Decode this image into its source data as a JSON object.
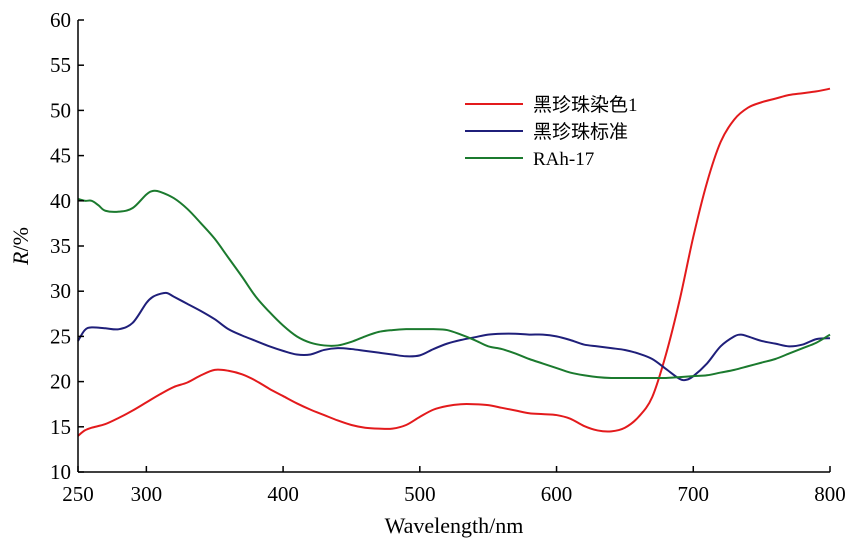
{
  "chart_data": {
    "type": "line",
    "xlabel": "Wavelength/nm",
    "ylabel": {
      "italic": "R",
      "rest": "/%"
    },
    "xlim": [
      250,
      800
    ],
    "ylim": [
      10,
      60
    ],
    "xticks": [
      250,
      300,
      400,
      500,
      600,
      700,
      800
    ],
    "yticks": [
      10,
      15,
      20,
      25,
      30,
      35,
      40,
      45,
      50,
      55,
      60
    ],
    "grid": false,
    "legend_position": "top-right",
    "series": [
      {
        "name": "黑珍珠染色1",
        "color": "#e31a1c",
        "points": [
          [
            250,
            14.0
          ],
          [
            255,
            14.6
          ],
          [
            260,
            14.9
          ],
          [
            270,
            15.3
          ],
          [
            280,
            16.0
          ],
          [
            290,
            16.8
          ],
          [
            300,
            17.7
          ],
          [
            310,
            18.6
          ],
          [
            320,
            19.4
          ],
          [
            330,
            19.9
          ],
          [
            340,
            20.7
          ],
          [
            350,
            21.3
          ],
          [
            360,
            21.2
          ],
          [
            370,
            20.8
          ],
          [
            380,
            20.1
          ],
          [
            390,
            19.2
          ],
          [
            400,
            18.4
          ],
          [
            410,
            17.6
          ],
          [
            420,
            16.9
          ],
          [
            430,
            16.3
          ],
          [
            440,
            15.7
          ],
          [
            450,
            15.2
          ],
          [
            460,
            14.9
          ],
          [
            470,
            14.8
          ],
          [
            480,
            14.8
          ],
          [
            490,
            15.2
          ],
          [
            500,
            16.1
          ],
          [
            510,
            16.9
          ],
          [
            520,
            17.3
          ],
          [
            530,
            17.5
          ],
          [
            540,
            17.5
          ],
          [
            550,
            17.4
          ],
          [
            560,
            17.1
          ],
          [
            570,
            16.8
          ],
          [
            580,
            16.5
          ],
          [
            590,
            16.4
          ],
          [
            600,
            16.3
          ],
          [
            610,
            15.9
          ],
          [
            620,
            15.1
          ],
          [
            630,
            14.6
          ],
          [
            640,
            14.5
          ],
          [
            650,
            14.9
          ],
          [
            660,
            16.1
          ],
          [
            670,
            18.3
          ],
          [
            680,
            23.0
          ],
          [
            690,
            29.0
          ],
          [
            700,
            36.0
          ],
          [
            710,
            42.0
          ],
          [
            720,
            46.5
          ],
          [
            730,
            49.0
          ],
          [
            740,
            50.3
          ],
          [
            750,
            50.9
          ],
          [
            760,
            51.3
          ],
          [
            770,
            51.7
          ],
          [
            780,
            51.9
          ],
          [
            790,
            52.1
          ],
          [
            800,
            52.4
          ]
        ]
      },
      {
        "name": "黑珍珠标准",
        "color": "#1f1f7a",
        "points": [
          [
            250,
            24.5
          ],
          [
            255,
            25.7
          ],
          [
            260,
            26.0
          ],
          [
            270,
            25.9
          ],
          [
            280,
            25.8
          ],
          [
            290,
            26.5
          ],
          [
            300,
            28.7
          ],
          [
            305,
            29.4
          ],
          [
            310,
            29.7
          ],
          [
            315,
            29.8
          ],
          [
            320,
            29.4
          ],
          [
            330,
            28.6
          ],
          [
            340,
            27.8
          ],
          [
            350,
            26.9
          ],
          [
            360,
            25.8
          ],
          [
            370,
            25.1
          ],
          [
            380,
            24.5
          ],
          [
            390,
            23.9
          ],
          [
            400,
            23.4
          ],
          [
            410,
            23.0
          ],
          [
            420,
            23.0
          ],
          [
            430,
            23.5
          ],
          [
            440,
            23.7
          ],
          [
            450,
            23.6
          ],
          [
            460,
            23.4
          ],
          [
            470,
            23.2
          ],
          [
            480,
            23.0
          ],
          [
            490,
            22.8
          ],
          [
            500,
            22.9
          ],
          [
            510,
            23.6
          ],
          [
            520,
            24.2
          ],
          [
            530,
            24.6
          ],
          [
            540,
            24.9
          ],
          [
            550,
            25.2
          ],
          [
            560,
            25.3
          ],
          [
            570,
            25.3
          ],
          [
            580,
            25.2
          ],
          [
            590,
            25.2
          ],
          [
            600,
            25.0
          ],
          [
            610,
            24.6
          ],
          [
            620,
            24.1
          ],
          [
            630,
            23.9
          ],
          [
            640,
            23.7
          ],
          [
            650,
            23.5
          ],
          [
            660,
            23.1
          ],
          [
            670,
            22.5
          ],
          [
            680,
            21.4
          ],
          [
            690,
            20.3
          ],
          [
            695,
            20.2
          ],
          [
            700,
            20.6
          ],
          [
            710,
            22.0
          ],
          [
            720,
            23.9
          ],
          [
            730,
            25.0
          ],
          [
            735,
            25.2
          ],
          [
            740,
            25.0
          ],
          [
            750,
            24.5
          ],
          [
            760,
            24.2
          ],
          [
            770,
            23.9
          ],
          [
            780,
            24.1
          ],
          [
            790,
            24.7
          ],
          [
            800,
            24.8
          ]
        ]
      },
      {
        "name": "RAh-17",
        "color": "#1b7a2e",
        "points": [
          [
            250,
            40.2
          ],
          [
            255,
            40.0
          ],
          [
            260,
            40.0
          ],
          [
            265,
            39.5
          ],
          [
            270,
            38.9
          ],
          [
            280,
            38.8
          ],
          [
            290,
            39.2
          ],
          [
            300,
            40.7
          ],
          [
            305,
            41.1
          ],
          [
            310,
            41.0
          ],
          [
            320,
            40.3
          ],
          [
            330,
            39.1
          ],
          [
            340,
            37.5
          ],
          [
            350,
            35.8
          ],
          [
            360,
            33.7
          ],
          [
            370,
            31.6
          ],
          [
            380,
            29.4
          ],
          [
            390,
            27.7
          ],
          [
            400,
            26.2
          ],
          [
            410,
            25.0
          ],
          [
            420,
            24.3
          ],
          [
            430,
            24.0
          ],
          [
            440,
            24.0
          ],
          [
            450,
            24.4
          ],
          [
            460,
            25.0
          ],
          [
            470,
            25.5
          ],
          [
            480,
            25.7
          ],
          [
            490,
            25.8
          ],
          [
            500,
            25.8
          ],
          [
            510,
            25.8
          ],
          [
            520,
            25.7
          ],
          [
            530,
            25.2
          ],
          [
            540,
            24.6
          ],
          [
            550,
            23.9
          ],
          [
            560,
            23.6
          ],
          [
            570,
            23.1
          ],
          [
            580,
            22.5
          ],
          [
            590,
            22.0
          ],
          [
            600,
            21.5
          ],
          [
            610,
            21.0
          ],
          [
            620,
            20.7
          ],
          [
            630,
            20.5
          ],
          [
            640,
            20.4
          ],
          [
            650,
            20.4
          ],
          [
            660,
            20.4
          ],
          [
            670,
            20.4
          ],
          [
            680,
            20.4
          ],
          [
            690,
            20.5
          ],
          [
            700,
            20.6
          ],
          [
            710,
            20.7
          ],
          [
            720,
            21.0
          ],
          [
            730,
            21.3
          ],
          [
            740,
            21.7
          ],
          [
            750,
            22.1
          ],
          [
            760,
            22.5
          ],
          [
            770,
            23.1
          ],
          [
            780,
            23.7
          ],
          [
            790,
            24.3
          ],
          [
            800,
            25.2
          ]
        ]
      }
    ]
  }
}
